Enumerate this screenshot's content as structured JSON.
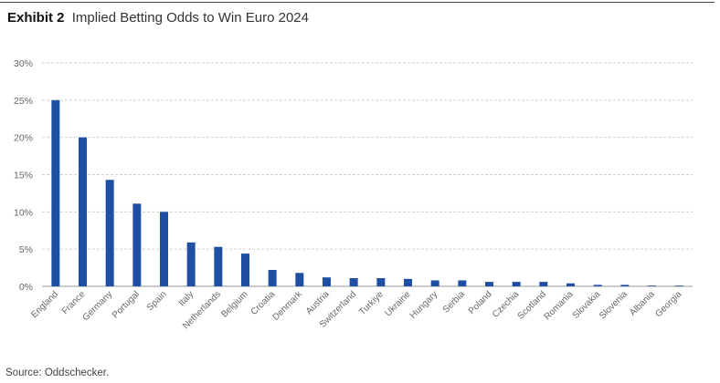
{
  "header": {
    "exhibit": "Exhibit 2",
    "title": "Implied Betting Odds to Win Euro 2024"
  },
  "footer": {
    "source": "Source: Oddschecker."
  },
  "colors": {
    "bar": "#1f4fa3",
    "grid": "#cfcfcf",
    "axis": "#9a9a9a",
    "tick_text": "#666666"
  },
  "chart_data": {
    "type": "bar",
    "title": "Implied Betting Odds to Win Euro 2024",
    "xlabel": "",
    "ylabel": "",
    "categories": [
      "England",
      "France",
      "Germany",
      "Portugal",
      "Spain",
      "Italy",
      "Netherlands",
      "Belgium",
      "Croatia",
      "Denmark",
      "Austria",
      "Switzerland",
      "Turkiye",
      "Ukraine",
      "Hungary",
      "Serbia",
      "Poland",
      "Czechia",
      "Scotland",
      "Romania",
      "Slovakia",
      "Slovenia",
      "Albania",
      "Georgia"
    ],
    "values": [
      25.0,
      20.0,
      14.3,
      11.1,
      10.0,
      5.9,
      5.3,
      4.4,
      2.2,
      1.8,
      1.2,
      1.1,
      1.1,
      1.0,
      0.8,
      0.8,
      0.6,
      0.6,
      0.6,
      0.4,
      0.2,
      0.2,
      0.1,
      0.1
    ],
    "ylim": [
      0,
      30
    ],
    "yticks": [
      0,
      5,
      10,
      15,
      20,
      25,
      30
    ],
    "ytick_labels": [
      "0%",
      "5%",
      "10%",
      "15%",
      "20%",
      "25%",
      "30%"
    ],
    "grid": true,
    "legend": "none"
  }
}
